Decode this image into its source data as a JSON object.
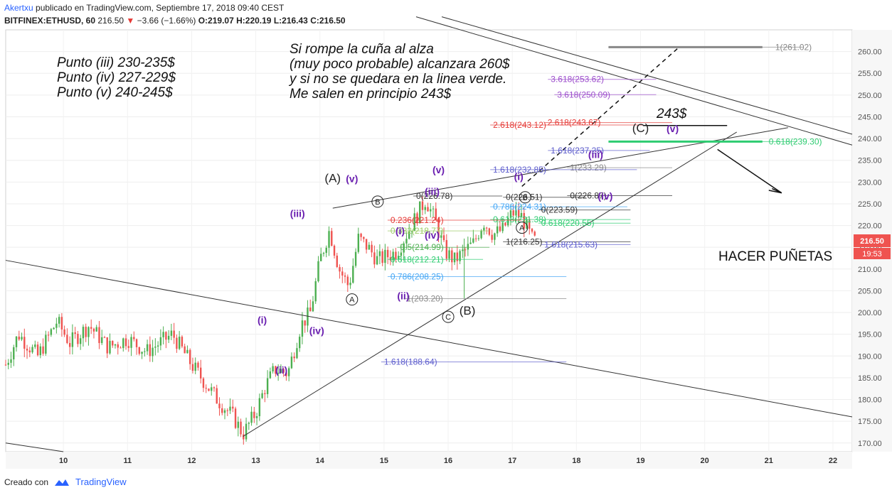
{
  "header": {
    "author": "Akertxu",
    "published": "publicado en TradingView.com, Septiembre 17, 2018 09:40 CEST",
    "symbol": "BITFINEX:ETHUSD, 60",
    "last": "216.50",
    "change": "−3.66 (−1.66%)",
    "open": "O:219.07",
    "high": "H:220.19",
    "low": "L:216.43",
    "close": "C:216.50"
  },
  "footer": {
    "created": "Creado con",
    "brand": "TradingView"
  },
  "notes_left": [
    "Punto (iii) 230-235$",
    "Punto (iv) 227-229$",
    "Punto (v) 240-245$"
  ],
  "notes_right": [
    "Si rompe la cuña al alza",
    "(muy poco probable) alcanzara 260$",
    "y si no se quedara en la linea verde.",
    "Me salen en principio 243$"
  ],
  "note_target": "243$",
  "note_action": "HACER PUÑETAS",
  "colors": {
    "up": "#4caf50",
    "down": "#ef5350",
    "wave": "#6a1fb0",
    "green_level": "#2ecc71",
    "grey_level": "#888888"
  },
  "chart_data": {
    "type": "candlestick",
    "price_axis": {
      "min": 168,
      "max": 265,
      "ticks": [
        170,
        175,
        180,
        185,
        190,
        195,
        200,
        205,
        210,
        215,
        220,
        225,
        230,
        235,
        240,
        245,
        250,
        255,
        260
      ]
    },
    "x_axis_ticks": [
      "10",
      "11",
      "12",
      "13",
      "14",
      "15",
      "16",
      "17",
      "18",
      "19",
      "20",
      "21",
      "22"
    ],
    "x_tick_days": [
      10,
      11,
      12,
      13,
      14,
      15,
      16,
      17,
      18,
      19,
      20,
      21,
      22
    ],
    "last_price": {
      "label": "216.50",
      "countdown": "19:53",
      "value": 216.5
    },
    "series_anchor_days": [
      9.1,
      9.3,
      9.6,
      9.9,
      10.1,
      10.4,
      10.7,
      11.0,
      11.3,
      11.7,
      12.0,
      12.2,
      12.4,
      12.65,
      12.8,
      13.0,
      13.15,
      13.3,
      13.5,
      13.7,
      13.85,
      14.0,
      14.15,
      14.3,
      14.45,
      14.6,
      14.75,
      14.9,
      15.05,
      15.2,
      15.35,
      15.5,
      15.65,
      15.8,
      15.95,
      16.1,
      16.25,
      16.4,
      16.55,
      16.7,
      16.85,
      17.0,
      17.15,
      17.3,
      17.35
    ],
    "series_anchor_prices": [
      188,
      195,
      190,
      198,
      193,
      197,
      192,
      194,
      191,
      195,
      188,
      184,
      180,
      176,
      172,
      177,
      183,
      187,
      186,
      197,
      200,
      212,
      219,
      210,
      206,
      217,
      215,
      212,
      213,
      214,
      218,
      222,
      226,
      221,
      214,
      212,
      214,
      216,
      221,
      218,
      219,
      223,
      222,
      217,
      216.5
    ],
    "fib_labels": [
      {
        "text": "1(261.02)",
        "price": 261.02,
        "color": "#888888"
      },
      {
        "text": "3.618(250.09)",
        "price": 250.09,
        "color": "#9c4dcc"
      },
      {
        "text": "3.618(253.62)",
        "price": 253.62,
        "color": "#9c4dcc"
      },
      {
        "text": "2.618(243.67)",
        "price": 243.67,
        "color": "#e53935"
      },
      {
        "text": "2.618(243.12)",
        "price": 243.12,
        "color": "#e53935"
      },
      {
        "text": "0.618(239.30)",
        "price": 239.3,
        "color": "#2ecc71"
      },
      {
        "text": "1.618(237.25)",
        "price": 237.25,
        "color": "#5c5ccc"
      },
      {
        "text": "1(233.29)",
        "price": 233.29,
        "color": "#888888"
      },
      {
        "text": "1.618(232.85)",
        "price": 232.85,
        "color": "#5c5ccc"
      },
      {
        "text": "0(226.87)",
        "price": 226.87,
        "color": "#333333"
      },
      {
        "text": "0(226.51)",
        "price": 226.51,
        "color": "#333333"
      },
      {
        "text": "0(226.78)",
        "price": 226.78,
        "color": "#333333"
      },
      {
        "text": "0.786(224.31)",
        "price": 224.31,
        "color": "#42a5f5"
      },
      {
        "text": "0(223.59)",
        "price": 223.59,
        "color": "#333333"
      },
      {
        "text": "0.618(221.38)",
        "price": 221.38,
        "color": "#2ecc71"
      },
      {
        "text": "0.236(221.24)",
        "price": 221.24,
        "color": "#e53935"
      },
      {
        "text": "0.618(220.55)",
        "price": 220.55,
        "color": "#2ecc71"
      },
      {
        "text": "0.382(218.77)",
        "price": 218.77,
        "color": "#9ccc65"
      },
      {
        "text": "0.5(214.99)",
        "price": 214.99,
        "color": "#4caf50"
      },
      {
        "text": "1(216.25)",
        "price": 216.25,
        "color": "#333333"
      },
      {
        "text": "1.618(215.63)",
        "price": 215.63,
        "color": "#5c5ccc"
      },
      {
        "text": "0.618(212.21)",
        "price": 212.21,
        "color": "#2ecc71"
      },
      {
        "text": "0.786(208.25)",
        "price": 208.25,
        "color": "#42a5f5"
      },
      {
        "text": "1(203.20)",
        "price": 203.2,
        "color": "#888888"
      },
      {
        "text": "1.618(188.64)",
        "price": 188.64,
        "color": "#5c5ccc"
      }
    ],
    "wave_labels": [
      {
        "text": "(i)",
        "day": 13.1,
        "price": 197.5,
        "color": "#6a1fb0"
      },
      {
        "text": "(ii)",
        "day": 13.4,
        "price": 186,
        "color": "#6a1fb0"
      },
      {
        "text": "(iii)",
        "day": 13.65,
        "price": 222,
        "color": "#6a1fb0"
      },
      {
        "text": "(iv)",
        "day": 13.95,
        "price": 195,
        "color": "#6a1fb0"
      },
      {
        "text": "(v)",
        "day": 14.5,
        "price": 230,
        "color": "#6a1fb0"
      },
      {
        "text": "(A)",
        "day": 14.2,
        "price": 230,
        "color": "#222222"
      },
      {
        "text": "(i)",
        "day": 15.25,
        "price": 218,
        "color": "#6a1fb0"
      },
      {
        "text": "(ii)",
        "day": 15.3,
        "price": 203,
        "color": "#6a1fb0"
      },
      {
        "text": "(iii)",
        "day": 15.75,
        "price": 227,
        "color": "#6a1fb0"
      },
      {
        "text": "(iv)",
        "day": 15.75,
        "price": 217,
        "color": "#6a1fb0"
      },
      {
        "text": "(v)",
        "day": 15.85,
        "price": 232,
        "color": "#6a1fb0"
      },
      {
        "text": "(B)",
        "day": 16.3,
        "price": 199.5,
        "color": "#222222"
      },
      {
        "text": "(i)",
        "day": 17.1,
        "price": 230.5,
        "color": "#6a1fb0"
      },
      {
        "text": "(iii)",
        "day": 18.3,
        "price": 235.5,
        "color": "#6a1fb0"
      },
      {
        "text": "(iv)",
        "day": 18.45,
        "price": 226,
        "color": "#6a1fb0"
      },
      {
        "text": "(C)",
        "day": 19.0,
        "price": 241.5,
        "color": "#222222"
      },
      {
        "text": "(v)",
        "day": 19.5,
        "price": 241.5,
        "color": "#6a1fb0"
      }
    ]
  }
}
